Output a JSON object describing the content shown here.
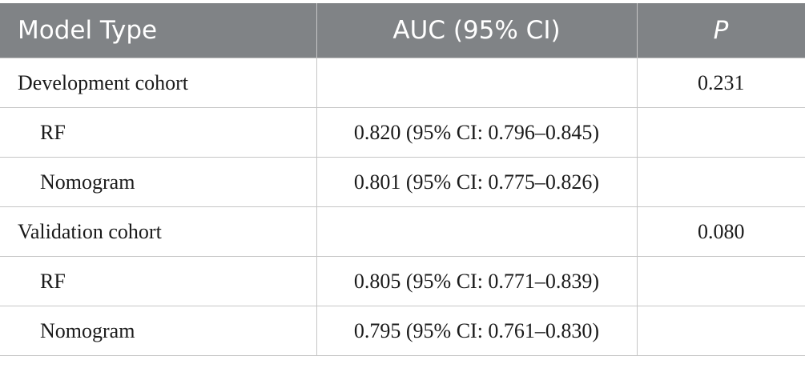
{
  "table": {
    "headers": [
      "Model Type",
      "AUC (95% CI)",
      "P"
    ],
    "rows": [
      {
        "label": "Development cohort",
        "auc": "",
        "p": "0.231",
        "sub": false
      },
      {
        "label": "RF",
        "auc": "0.820 (95% CI: 0.796–0.845)",
        "p": "",
        "sub": true
      },
      {
        "label": "Nomogram",
        "auc": "0.801 (95% CI: 0.775–0.826)",
        "p": "",
        "sub": true
      },
      {
        "label": "Validation cohort",
        "auc": "",
        "p": "0.080",
        "sub": false
      },
      {
        "label": "RF",
        "auc": "0.805 (95% CI: 0.771–0.839)",
        "p": "",
        "sub": true
      },
      {
        "label": "Nomogram",
        "auc": "0.795 (95% CI: 0.761–0.830)",
        "p": "",
        "sub": true
      }
    ]
  }
}
